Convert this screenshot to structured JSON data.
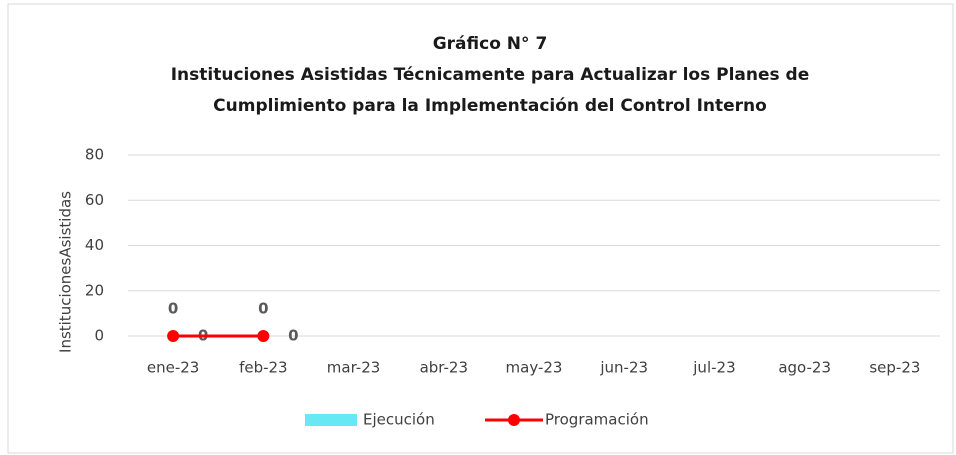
{
  "chart_data": {
    "type": "bar",
    "title": [
      "Gráfico  N° 7",
      "Instituciones  Asistidas  Técnicamente para  Actualizar  los Planes de",
      "Cumplimiento para la Implementación  del Control Interno"
    ],
    "y_label": "InstitucionesAsistidas",
    "categories": [
      "ene-23",
      "feb-23",
      "mar-23",
      "abr-23",
      "may-23",
      "jun-23",
      "jul-23",
      "ago-23",
      "sep-23"
    ],
    "series": [
      {
        "name": "Ejecución",
        "type": "bar",
        "color": "#66e8f5",
        "values": [
          0,
          0,
          null,
          null,
          null,
          null,
          null,
          null,
          null
        ]
      },
      {
        "name": "Programación",
        "type": "line",
        "color": "#ff0000",
        "values": [
          0,
          0,
          null,
          null,
          null,
          null,
          null,
          null,
          null
        ]
      }
    ],
    "ylim": [
      0,
      80
    ],
    "yticks": [
      0,
      20,
      40,
      60,
      80
    ],
    "grid": true,
    "legend": "bottom"
  }
}
